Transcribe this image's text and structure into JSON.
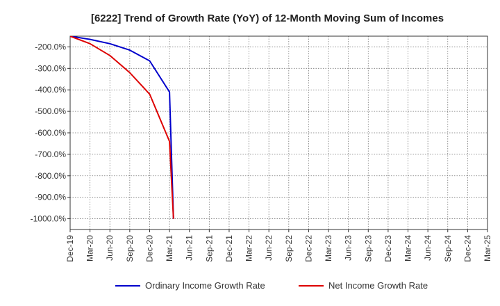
{
  "chart_data": {
    "type": "line",
    "title": "[6222]  Trend of Growth Rate (YoY) of 12-Month Moving Sum of Incomes",
    "xlabel": "",
    "ylabel": "",
    "ylim": [
      -1050,
      -150
    ],
    "y_ticks": [
      -200,
      -300,
      -400,
      -500,
      -600,
      -700,
      -800,
      -900,
      -1000
    ],
    "y_tick_labels": [
      "-200.0%",
      "-300.0%",
      "-400.0%",
      "-500.0%",
      "-600.0%",
      "-700.0%",
      "-800.0%",
      "-900.0%",
      "-1000.0%"
    ],
    "x_tick_labels": [
      "Dec-19",
      "Mar-20",
      "Jun-20",
      "Sep-20",
      "Dec-20",
      "Mar-21",
      "Jun-21",
      "Sep-21",
      "Dec-21",
      "Mar-22",
      "Jun-22",
      "Sep-22",
      "Dec-22",
      "Mar-23",
      "Jun-23",
      "Sep-23",
      "Dec-23",
      "Mar-24",
      "Jun-24",
      "Sep-24",
      "Dec-24",
      "Mar-25"
    ],
    "grid": true,
    "legend_position": "bottom",
    "series": [
      {
        "name": "Ordinary Income Growth Rate",
        "color": "#0000cc",
        "points": [
          [
            0,
            -150
          ],
          [
            1,
            -165
          ],
          [
            2,
            -185
          ],
          [
            3,
            -215
          ],
          [
            4,
            -265
          ],
          [
            5,
            -410
          ],
          [
            5.2,
            -1000
          ]
        ]
      },
      {
        "name": "Net Income Growth Rate",
        "color": "#dd0000",
        "points": [
          [
            0,
            -150
          ],
          [
            1,
            -185
          ],
          [
            2,
            -240
          ],
          [
            3,
            -320
          ],
          [
            4,
            -420
          ],
          [
            5,
            -640
          ],
          [
            5.2,
            -1000
          ]
        ]
      }
    ]
  }
}
